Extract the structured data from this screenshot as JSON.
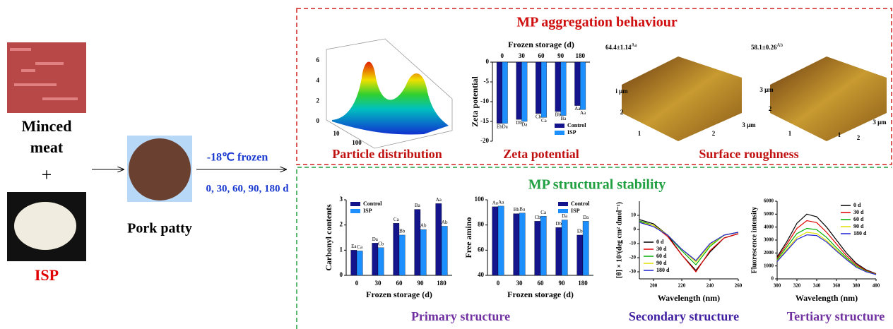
{
  "left": {
    "ingredient1": "Minced meat",
    "plus": "+",
    "ingredient2": "ISP",
    "product": "Pork patty",
    "treatment": "-18℃ frozen",
    "times": "0, 30, 60, 90, 180 d"
  },
  "aggregation": {
    "title": "MP aggregation behaviour",
    "particle": {
      "caption": "Particle distribution",
      "zticks": [
        0,
        2,
        4,
        6
      ],
      "xticks": [
        10,
        100
      ]
    },
    "zeta": {
      "type": "bar",
      "title": "Frozen storage (d)",
      "ylabel": "Zeta potential",
      "x_axis": "top",
      "caption": "Zeta potential",
      "categories": [
        "0",
        "30",
        "60",
        "90",
        "180"
      ],
      "series": [
        {
          "name": "Control",
          "color": "#14148c",
          "values": [
            -15.5,
            -14.5,
            -13,
            -12.5,
            -11
          ],
          "labels": [
            "Eb",
            "Db",
            "Cb",
            "Bb",
            "Aa"
          ]
        },
        {
          "name": "ISP",
          "color": "#1e8fff",
          "values": [
            -15.5,
            -15,
            -14,
            -13.5,
            -12
          ],
          "labels": [
            "Da",
            "Da",
            "Ca",
            "Ba",
            "Aa"
          ]
        }
      ],
      "ylim": [
        -20,
        0
      ],
      "yticks": [
        0,
        -5,
        -10,
        -15,
        -20
      ],
      "legend": "lower right"
    },
    "roughness": {
      "caption": "Surface roughness",
      "samples": [
        {
          "value": "64.4±1.14",
          "letters": "Aa",
          "axis_labels": [
            "i μm",
            "2",
            "1",
            "2",
            "3 μm"
          ]
        },
        {
          "value": "58.1±0.26",
          "letters": "Ab",
          "axis_labels": [
            "3 μm",
            "2",
            "1",
            "1",
            "2",
            "3 μm"
          ]
        }
      ]
    }
  },
  "stability": {
    "title": "MP structural stability",
    "primary_caption": "Primary structure",
    "secondary_caption": "Secondary structure",
    "tertiary_caption": "Tertiary structure",
    "carbonyl": {
      "type": "bar",
      "ylabel": "Carbonyl contents",
      "xlabel": "Frozen storage (d)",
      "categories": [
        "0",
        "30",
        "60",
        "90",
        "180"
      ],
      "series": [
        {
          "name": "Control",
          "color": "#14148c",
          "values": [
            1.0,
            1.28,
            2.07,
            2.62,
            2.85
          ],
          "labels": [
            "Ea",
            "Da",
            "Ca",
            "Ba",
            "Aa"
          ]
        },
        {
          "name": "ISP",
          "color": "#1e8fff",
          "values": [
            0.97,
            1.1,
            1.6,
            1.82,
            1.95
          ],
          "labels": [
            "Ca",
            "Cb",
            "Bb",
            "Ab",
            "Ab"
          ]
        }
      ],
      "ylim": [
        0,
        3
      ],
      "yticks": [
        0,
        1,
        2,
        3
      ],
      "legend": "upper left"
    },
    "amino": {
      "type": "bar",
      "ylabel": "Free amino",
      "xlabel": "Frozen storage (d)",
      "categories": [
        "0",
        "30",
        "60",
        "90",
        "180"
      ],
      "series": [
        {
          "name": "Control",
          "color": "#14148c",
          "values": [
            94.5,
            89,
            83,
            78,
            72
          ],
          "labels": [
            "Aa",
            "Bb",
            "Cb",
            "Db",
            "Eb"
          ]
        },
        {
          "name": "ISP",
          "color": "#1e8fff",
          "values": [
            95,
            89.5,
            87,
            84,
            83
          ],
          "labels": [
            "Aa",
            "Ba",
            "Ca",
            "Da",
            "Da"
          ]
        }
      ],
      "ylim": [
        40,
        100
      ],
      "yticks": [
        40,
        60,
        80,
        100
      ],
      "legend": "upper right"
    },
    "cd": {
      "type": "line",
      "ylabel": "[θ] × 10³(deg cm² dmol⁻¹)",
      "xlabel": "Wavelength (nm)",
      "x": [
        190,
        200,
        210,
        220,
        230,
        240,
        250,
        260
      ],
      "series": [
        {
          "name": "0 d",
          "color": "#000000",
          "values": [
            7,
            4,
            -4,
            -18,
            -29,
            -16,
            -6,
            -3
          ]
        },
        {
          "name": "30 d",
          "color": "#e00000",
          "values": [
            6,
            3,
            -5,
            -18,
            -30,
            -15,
            -6,
            -3
          ]
        },
        {
          "name": "60 d",
          "color": "#00b000",
          "values": [
            6,
            3,
            -4,
            -15,
            -25,
            -12,
            -4,
            -2
          ]
        },
        {
          "name": "90 d",
          "color": "#e0e000",
          "values": [
            5,
            3,
            -4,
            -14,
            -23,
            -11,
            -4,
            -2
          ]
        },
        {
          "name": "180 d",
          "color": "#2020d0",
          "values": [
            5,
            2,
            -4,
            -14,
            -22,
            -10,
            -4,
            -2
          ]
        }
      ],
      "xlim": [
        190,
        260
      ],
      "xticks": [
        200,
        220,
        240,
        260
      ],
      "ylim": [
        -35,
        20
      ],
      "yticks": [
        10,
        0,
        -10,
        -20,
        -30
      ],
      "legend": "lower left"
    },
    "fluo": {
      "type": "line",
      "ylabel": "Fluorescence intensity",
      "xlabel": "Wavelength (nm)",
      "x": [
        300,
        310,
        320,
        330,
        340,
        350,
        360,
        370,
        380,
        390,
        400
      ],
      "series": [
        {
          "name": "0 d",
          "color": "#000000",
          "values": [
            1700,
            2900,
            4300,
            5000,
            4800,
            4000,
            3000,
            2000,
            1200,
            700,
            400
          ]
        },
        {
          "name": "30 d",
          "color": "#e00000",
          "values": [
            1600,
            2700,
            3900,
            4500,
            4350,
            3600,
            2700,
            1800,
            1100,
            650,
            380
          ]
        },
        {
          "name": "60 d",
          "color": "#00b000",
          "values": [
            1500,
            2500,
            3500,
            3900,
            3800,
            3200,
            2400,
            1650,
            1000,
            600,
            350
          ]
        },
        {
          "name": "90 d",
          "color": "#e0e000",
          "values": [
            1400,
            2300,
            3200,
            3600,
            3500,
            2950,
            2250,
            1550,
            950,
            570,
            340
          ]
        },
        {
          "name": "180 d",
          "color": "#2020d0",
          "values": [
            1350,
            2200,
            3050,
            3400,
            3350,
            2850,
            2150,
            1500,
            900,
            550,
            330
          ]
        }
      ],
      "xlim": [
        300,
        400
      ],
      "xticks": [
        300,
        320,
        340,
        360,
        380,
        400
      ],
      "ylim": [
        0,
        6000
      ],
      "yticks": [
        0,
        1000,
        2000,
        3000,
        4000,
        5000,
        6000
      ],
      "legend": "upper right"
    }
  }
}
